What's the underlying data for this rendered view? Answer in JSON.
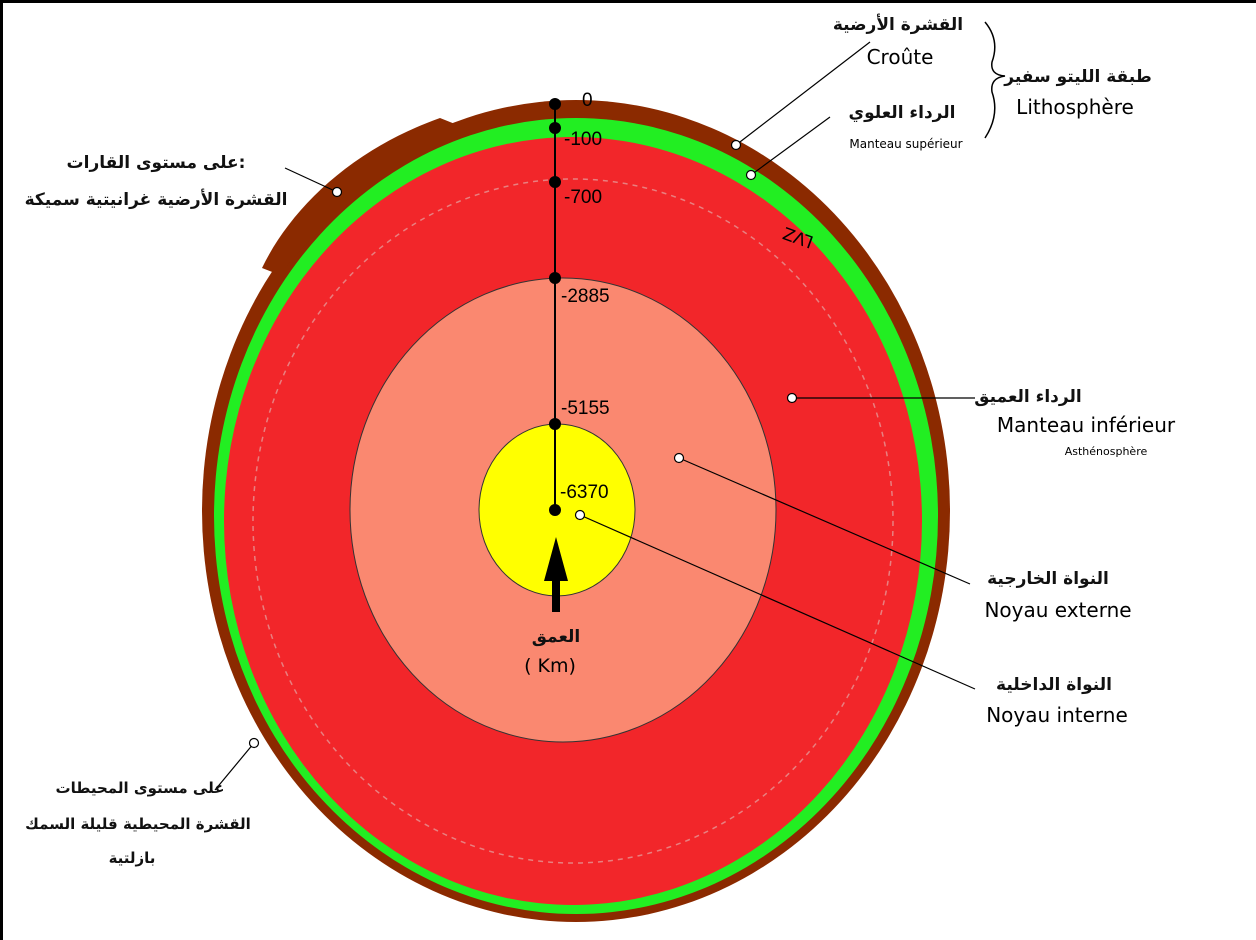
{
  "colors": {
    "crust": "#8b2a00",
    "lithosphere_mantle": "#22ee22",
    "lower_mantle": "#f2262a",
    "outer_core": "#fa8870",
    "inner_core": "#ffff00",
    "pointer_dot": "#ffffff",
    "lines": "#000000"
  },
  "depths": [
    "0",
    "-100",
    "-700",
    "-2885",
    "-5155",
    "-6370"
  ],
  "depth_axis": {
    "arabic": "العمق",
    "unit": "( Km)"
  },
  "labels": {
    "crust_ar": "القشرة الأرضية",
    "crust_fr": "Croûte",
    "lithosphere_ar": "طبقة الليتو سفير",
    "lithosphere_fr": "Lithosphère",
    "upper_mantle_ar": "الرداء العلوي",
    "upper_mantle_fr": "Manteau supérieur",
    "continent_ar_1": "على مستوى القارات:",
    "continent_ar_2": "القشرة الأرضية غرانيتية سميكة",
    "lvz": "LVZ",
    "lower_mantle_ar": "الرداء العميق",
    "lower_mantle_fr": "Manteau inférieur",
    "asthenosphere_fr": "Asthénosphère",
    "outer_core_ar": "النواة الخارجية",
    "outer_core_fr": "Noyau externe",
    "inner_core_ar": "النواة الداخلية",
    "inner_core_fr": "Noyau interne",
    "ocean_ar_1": "على مستوى المحيطات",
    "ocean_ar_2": "القشرة المحيطية قليلة السمك",
    "ocean_ar_3": "بازلتية"
  }
}
